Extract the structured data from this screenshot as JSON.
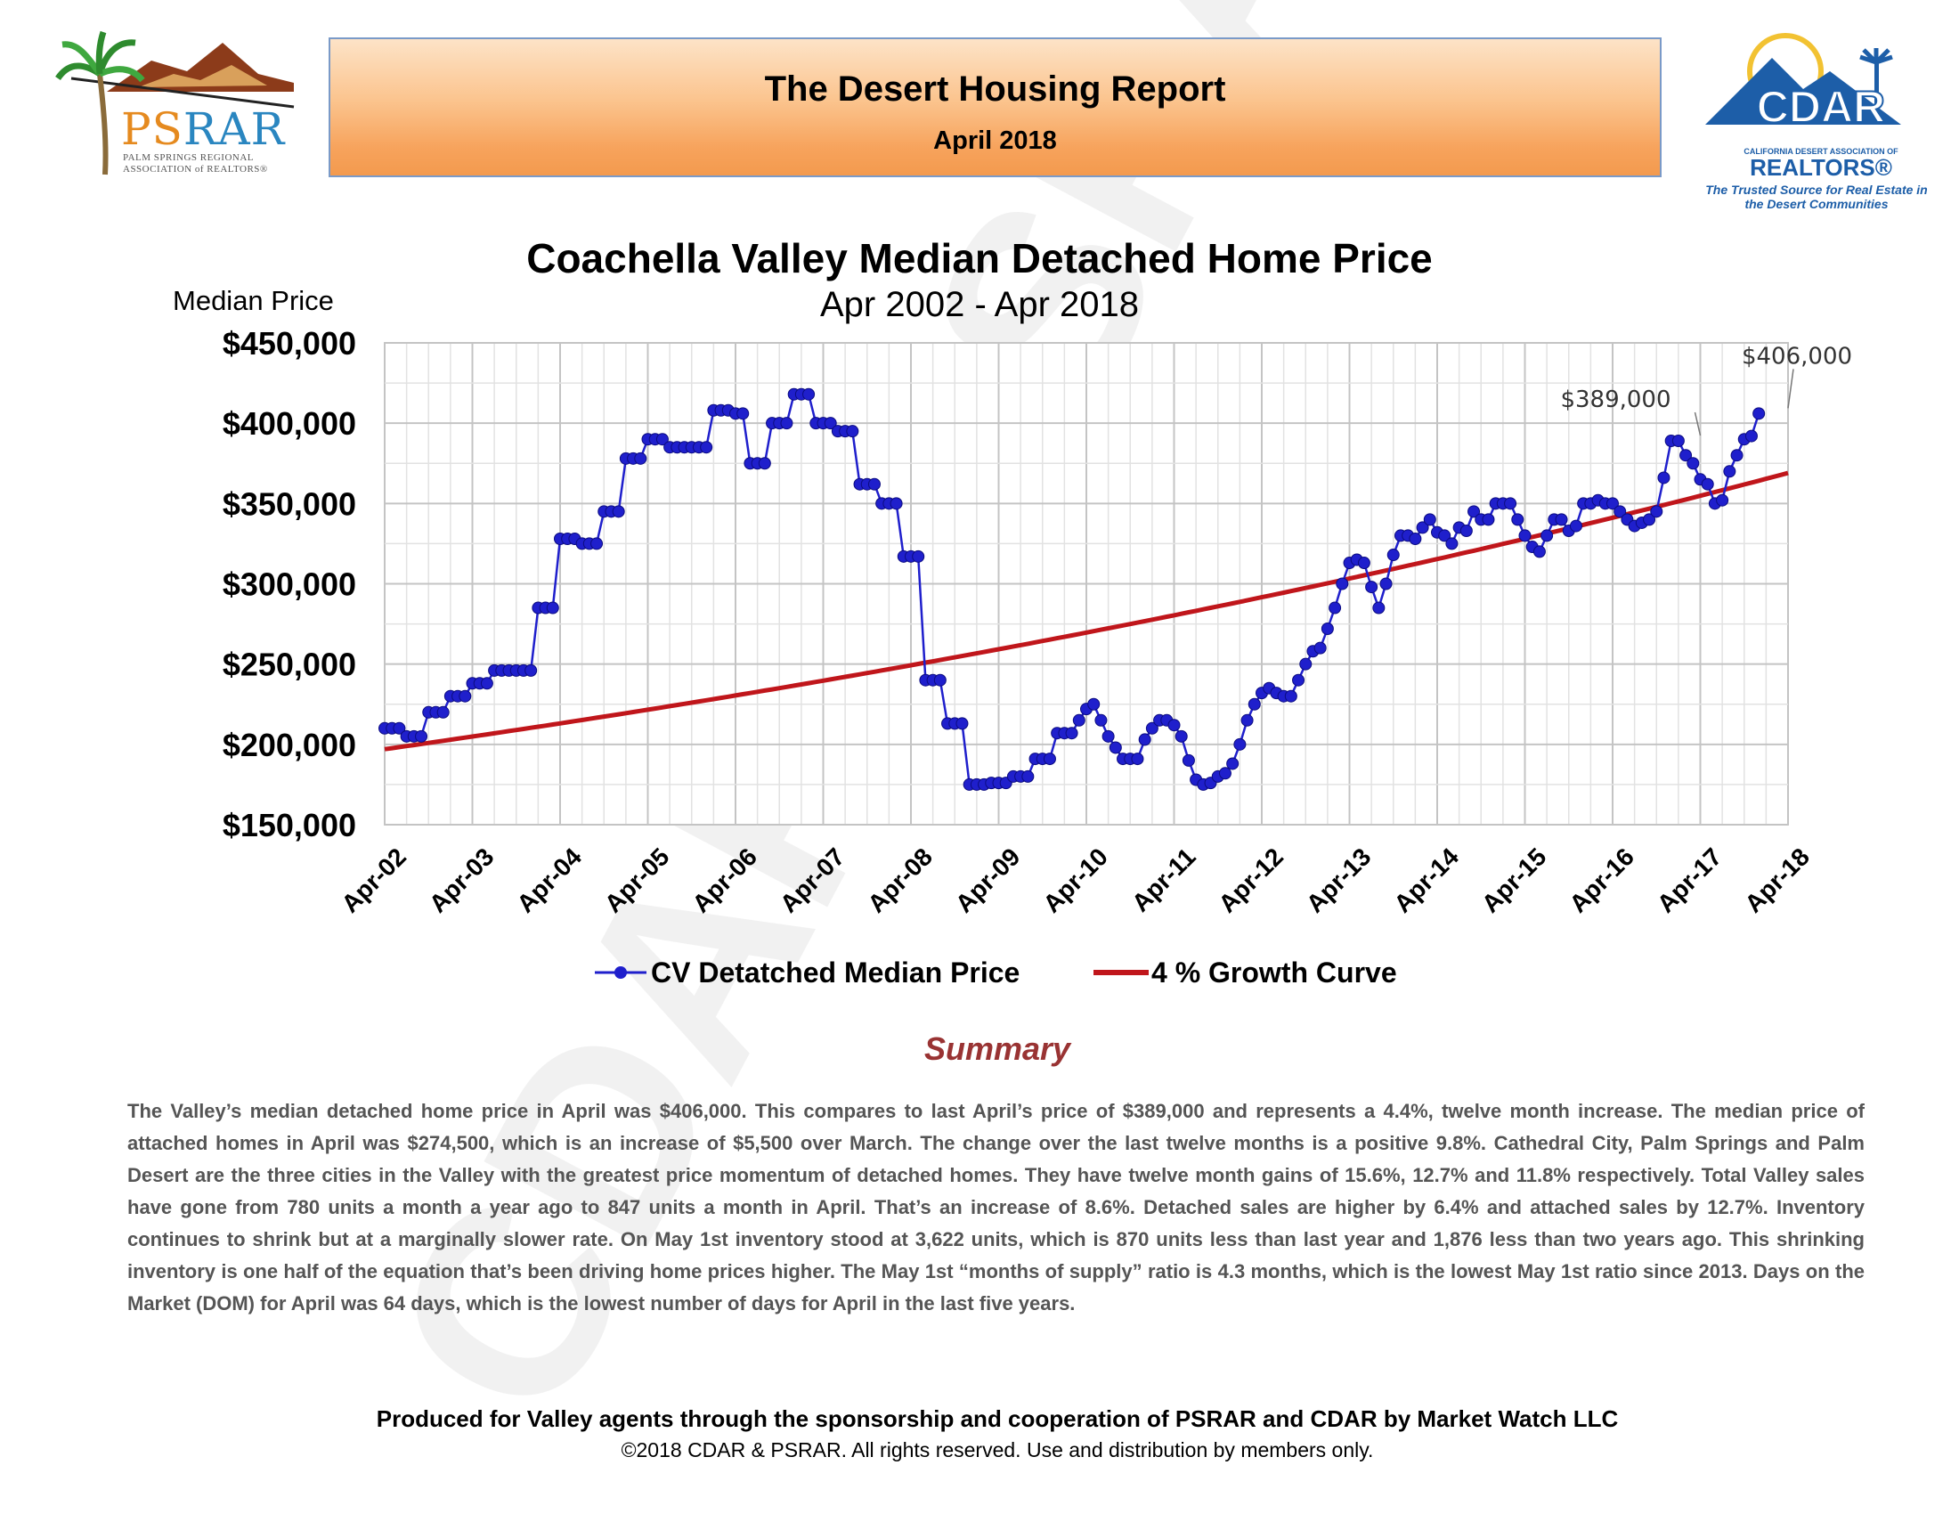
{
  "header": {
    "title": "The Desert Housing Report",
    "date": "April 2018"
  },
  "logos": {
    "psrar": {
      "word_a": "PS",
      "word_b": "RAR",
      "subtitle": "PALM SPRINGS REGIONAL ASSOCIATION of REALTORS®",
      "colors": {
        "ps": "#e58a1f",
        "rar": "#2a86c0",
        "mountain": "#8c3b1a",
        "palm": "#2e8b2e"
      }
    },
    "cdar": {
      "wordmark": "CDAR",
      "small_text": "CALIFORNIA DESERT ASSOCIATION OF",
      "realtors": "REALTORS®",
      "tagline": "The Trusted Source for Real Estate in the Desert Communities",
      "color": "#1d5ea8"
    }
  },
  "watermark": "CDAR&PSRAR",
  "chart_data": {
    "type": "line",
    "title": "Coachella Valley Median Detached Home Price",
    "subtitle": "Apr 2002 - Apr 2018",
    "ylabel": "Median Price",
    "xlabel": "",
    "ylim": [
      150000,
      450000
    ],
    "yticks": [
      150000,
      200000,
      250000,
      300000,
      350000,
      400000,
      450000
    ],
    "ytick_labels": [
      "$150,000",
      "$200,000",
      "$250,000",
      "$300,000",
      "$350,000",
      "$400,000",
      "$450,000"
    ],
    "xlim": [
      2002.25,
      2018.25
    ],
    "xtick_labels": [
      "Apr-02",
      "Apr-03",
      "Apr-04",
      "Apr-05",
      "Apr-06",
      "Apr-07",
      "Apr-08",
      "Apr-09",
      "Apr-10",
      "Apr-11",
      "Apr-12",
      "Apr-13",
      "Apr-14",
      "Apr-15",
      "Apr-16",
      "Apr-17",
      "Apr-18"
    ],
    "grid": true,
    "legend_position": "bottom",
    "series": [
      {
        "name": "CV Detatched Median Price",
        "color": "#1f1fcc",
        "marker": "circle",
        "start": "Apr-02",
        "interval": "monthly",
        "values": [
          210000,
          210000,
          210000,
          205000,
          205000,
          205000,
          220000,
          220000,
          220000,
          230000,
          230000,
          230000,
          238000,
          238000,
          238000,
          246000,
          246000,
          246000,
          246000,
          246000,
          246000,
          285000,
          285000,
          285000,
          328000,
          328000,
          328000,
          325000,
          325000,
          325000,
          345000,
          345000,
          345000,
          378000,
          378000,
          378000,
          390000,
          390000,
          390000,
          385000,
          385000,
          385000,
          385000,
          385000,
          385000,
          408000,
          408000,
          408000,
          406000,
          406000,
          375000,
          375000,
          375000,
          400000,
          400000,
          400000,
          418000,
          418000,
          418000,
          400000,
          400000,
          400000,
          395000,
          395000,
          395000,
          362000,
          362000,
          362000,
          350000,
          350000,
          350000,
          317000,
          317000,
          317000,
          240000,
          240000,
          240000,
          213000,
          213000,
          213000,
          175000,
          175000,
          175000,
          176000,
          176000,
          176000,
          180000,
          180000,
          180000,
          191000,
          191000,
          191000,
          207000,
          207000,
          207000,
          215000,
          222000,
          225000,
          215000,
          205000,
          198000,
          191000,
          191000,
          191000,
          203000,
          210000,
          215000,
          215000,
          212000,
          205000,
          190000,
          178000,
          175000,
          176000,
          180000,
          182000,
          188000,
          200000,
          215000,
          225000,
          232000,
          235000,
          232000,
          230000,
          230000,
          240000,
          250000,
          258000,
          260000,
          272000,
          285000,
          300000,
          313000,
          315000,
          313000,
          298000,
          285000,
          300000,
          318000,
          330000,
          330000,
          328000,
          335000,
          340000,
          332000,
          330000,
          325000,
          335000,
          333000,
          345000,
          340000,
          340000,
          350000,
          350000,
          350000,
          340000,
          330000,
          323000,
          320000,
          330000,
          340000,
          340000,
          333000,
          336000,
          350000,
          350000,
          352000,
          350000,
          350000,
          345000,
          340000,
          336000,
          338000,
          340000,
          345000,
          366000,
          389000,
          389000,
          380000,
          375000,
          365000,
          362000,
          350000,
          352000,
          370000,
          380000,
          390000,
          392000,
          406000
        ],
        "annotations": [
          {
            "label": "$389,000",
            "at": "Apr-17",
            "value": 389000
          },
          {
            "label": "$406,000",
            "at": "Apr-18",
            "value": 406000
          }
        ]
      },
      {
        "name": "4 % Growth Curve",
        "color": "#c0161b",
        "marker": "none",
        "start_value": 197000,
        "annual_growth": 0.04,
        "range": [
          "Apr-02",
          "Apr-18"
        ]
      }
    ]
  },
  "summary": {
    "heading": "Summary",
    "body": "The Valley’s median detached home price in April was $406,000. This compares to last April’s price of $389,000 and represents a 4.4%, twelve month increase. The median price of attached homes in April was $274,500, which is an increase of $5,500 over March. The change over the last twelve months is a positive 9.8%. Cathedral City, Palm Springs and Palm Desert are the three cities in the Valley with the greatest price momentum of detached homes. They have twelve month gains of 15.6%, 12.7% and 11.8% respectively. Total Valley sales have gone from 780 units a month a year ago to 847 units a month in April. That’s an increase of 8.6%. Detached sales are higher by 6.4% and attached sales by 12.7%. Inventory continues to shrink but at a marginally slower rate. On May 1st inventory stood at 3,622 units, which is 870 units less than last year and 1,876 less than two years ago. This shrinking inventory is one half of the equation that’s been driving home prices higher. The May 1st “months of supply” ratio is 4.3 months, which is the lowest May 1st ratio since 2013. Days on the Market (DOM) for April was 64 days, which is the lowest number of days for April in the last five years."
  },
  "footer": {
    "line1": "Produced for Valley agents through the sponsorship and cooperation of PSRAR and CDAR by Market Watch LLC",
    "line2": "©2018 CDAR & PSRAR.  All rights reserved.  Use and distribution by members only."
  }
}
